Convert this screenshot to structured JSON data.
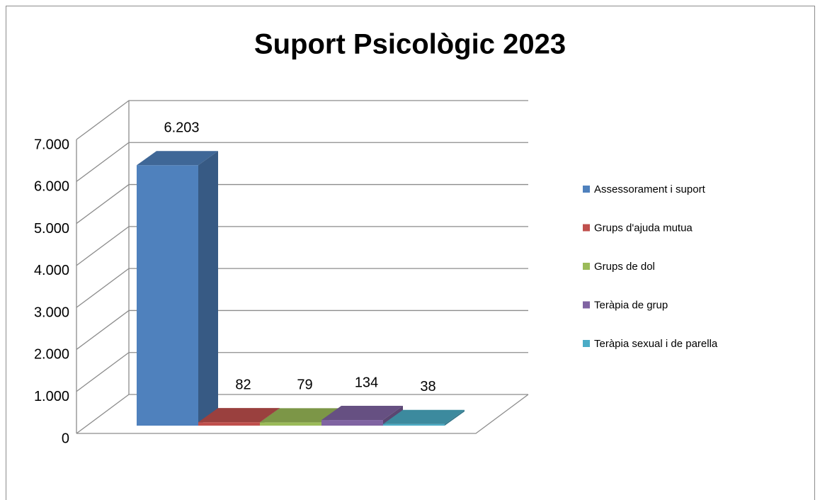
{
  "chart_data": {
    "type": "bar3d",
    "title": "Suport Psicològic  2023",
    "series": [
      {
        "name": "Assessorament i suport",
        "color": "#4f81bd",
        "values": [
          6203
        ],
        "value_labels": [
          "6.203"
        ]
      },
      {
        "name": "Grups d'ajuda mutua",
        "color": "#c0504d",
        "values": [
          82
        ]
      },
      {
        "name": "Grups de dol",
        "color": "#9bbb59",
        "values": [
          79
        ]
      },
      {
        "name": "Teràpia de grup",
        "color": "#8064a2",
        "values": [
          134
        ]
      },
      {
        "name": "Teràpia sexual i de parella",
        "color": "#4bacc6",
        "values": [
          38
        ]
      }
    ],
    "ylim": [
      0,
      7000
    ],
    "yticks": [
      0,
      {
        "value": 1000,
        "label": "1.000"
      },
      {
        "value": 2000,
        "label": "2.000"
      },
      {
        "value": 3000,
        "label": "3.000"
      },
      {
        "value": 4000,
        "label": "4.000"
      },
      {
        "value": 5000,
        "label": "5.000"
      },
      {
        "value": 6000,
        "label": "6.000"
      },
      {
        "value": 7000,
        "label": "7.000"
      }
    ],
    "grid": true,
    "legend": "right"
  }
}
